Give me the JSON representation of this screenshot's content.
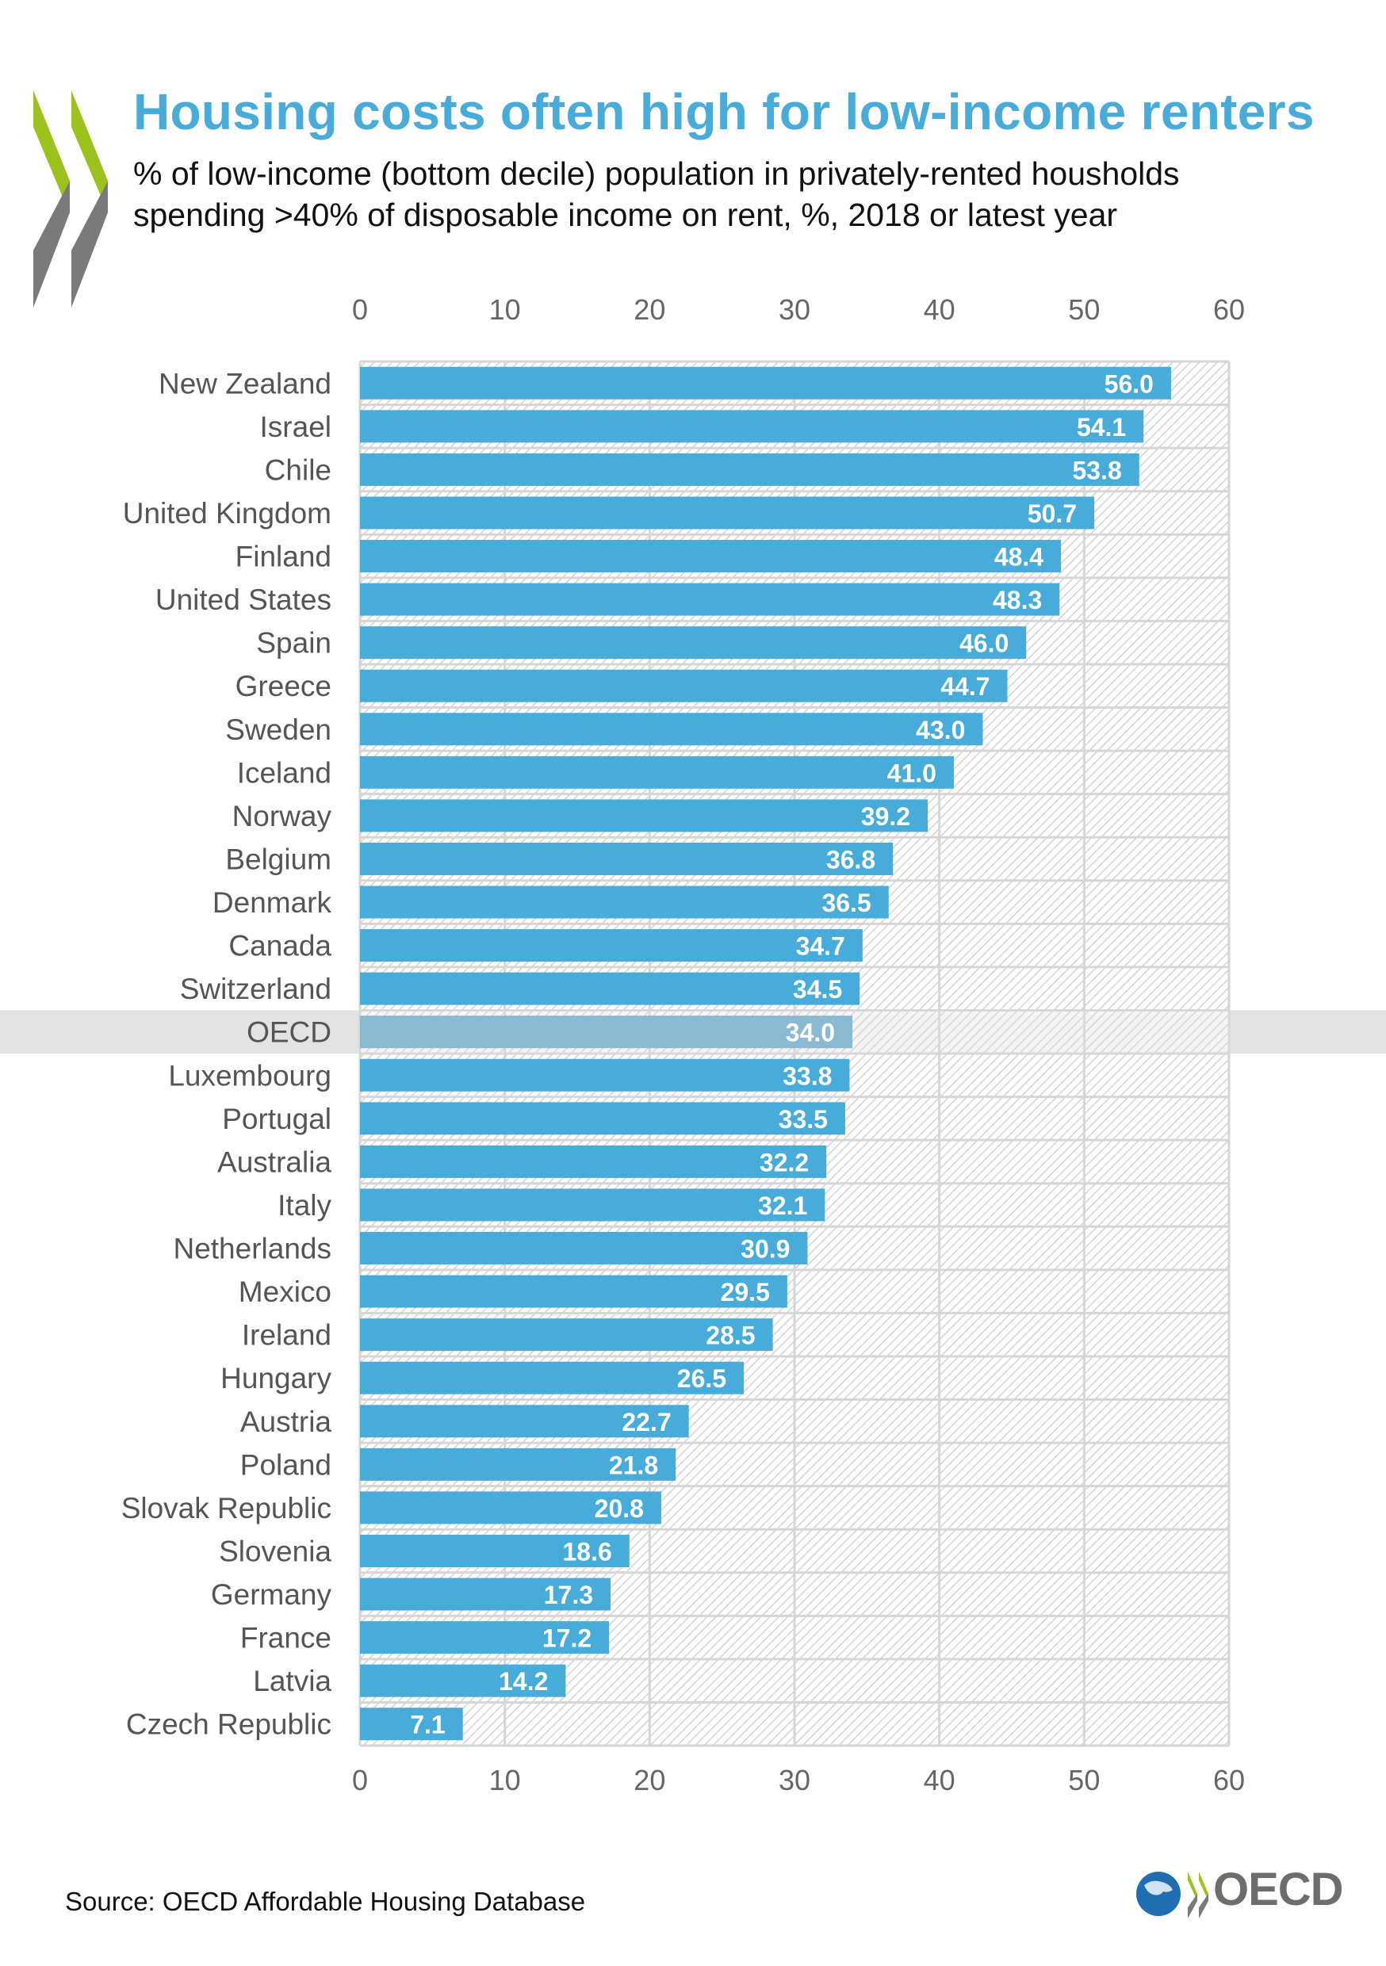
{
  "title": "Housing costs often high for low-income renters",
  "subtitle_line1": "% of low-income (bottom decile) population in privately-rented housholds",
  "subtitle_line2": "spending >40% of disposable income on rent, %, 2018 or latest year",
  "source": "Source: OECD Affordable Housing Database",
  "logo_text": "OECD",
  "colors": {
    "bar": "#47ACDA",
    "highlight_bar": "#5DA5CB",
    "highlight_band": "#E3E3E3",
    "title": "#47ACDA",
    "grid": "#D6D6D6"
  },
  "chart_data": {
    "type": "bar",
    "orientation": "horizontal",
    "title": "Housing costs often high for low-income renters",
    "xlabel": "",
    "ylabel": "",
    "xlim": [
      0,
      60
    ],
    "ticks": [
      0,
      10,
      20,
      30,
      40,
      50,
      60
    ],
    "highlight": "OECD",
    "categories": [
      "New Zealand",
      "Israel",
      "Chile",
      "United Kingdom",
      "Finland",
      "United States",
      "Spain",
      "Greece",
      "Sweden",
      "Iceland",
      "Norway",
      "Belgium",
      "Denmark",
      "Canada",
      "Switzerland",
      "OECD",
      "Luxembourg",
      "Portugal",
      "Australia",
      "Italy",
      "Netherlands",
      "Mexico",
      "Ireland",
      "Hungary",
      "Austria",
      "Poland",
      "Slovak Republic",
      "Slovenia",
      "Germany",
      "France",
      "Latvia",
      "Czech Republic"
    ],
    "values": [
      56.0,
      54.1,
      53.8,
      50.7,
      48.4,
      48.3,
      46.0,
      44.7,
      43.0,
      41.0,
      39.2,
      36.8,
      36.5,
      34.7,
      34.5,
      34.0,
      33.8,
      33.5,
      32.2,
      32.1,
      30.9,
      29.5,
      28.5,
      26.5,
      22.7,
      21.8,
      20.8,
      18.6,
      17.3,
      17.2,
      14.2,
      7.1
    ],
    "grid": true,
    "legend": "none"
  }
}
